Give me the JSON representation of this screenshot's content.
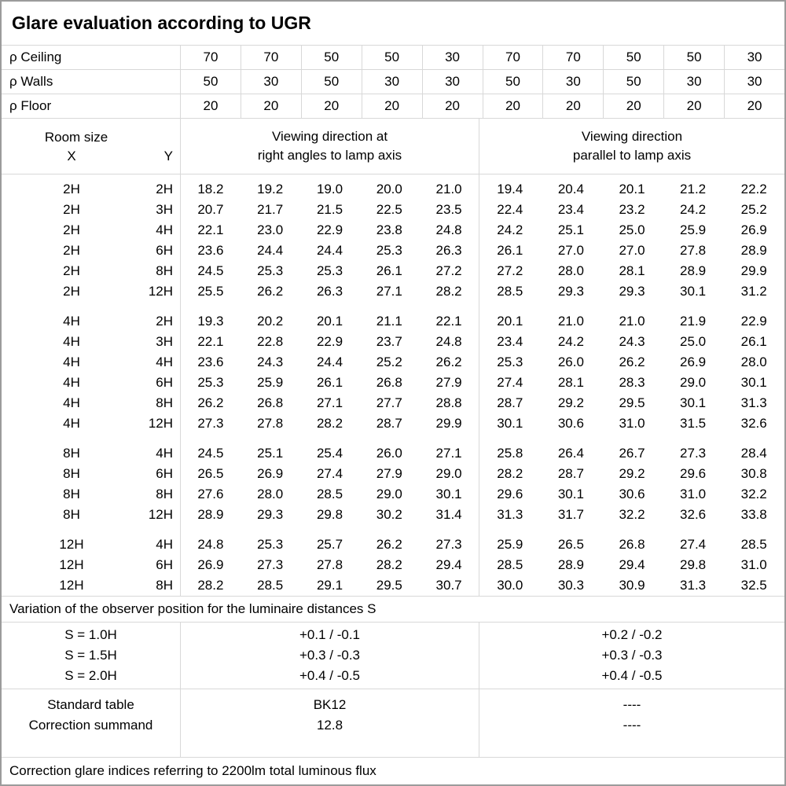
{
  "title": "Glare evaluation according to UGR",
  "reflectance": {
    "rows": [
      {
        "label": "ρ Ceiling",
        "values": [
          "70",
          "70",
          "50",
          "50",
          "30",
          "70",
          "70",
          "50",
          "50",
          "30"
        ]
      },
      {
        "label": "ρ Walls",
        "values": [
          "50",
          "30",
          "50",
          "30",
          "30",
          "50",
          "30",
          "50",
          "30",
          "30"
        ]
      },
      {
        "label": "ρ Floor",
        "values": [
          "20",
          "20",
          "20",
          "20",
          "20",
          "20",
          "20",
          "20",
          "20",
          "20"
        ]
      }
    ]
  },
  "header": {
    "room_size_label": "Room size",
    "x_label": "X",
    "y_label": "Y",
    "right_angles_line1": "Viewing direction at",
    "right_angles_line2": "right angles to lamp axis",
    "parallel_line1": "Viewing direction",
    "parallel_line2": "parallel to lamp axis"
  },
  "ugr_table": {
    "groups": [
      {
        "rows": [
          {
            "x": "2H",
            "y": "2H",
            "right_angles": [
              "18.2",
              "19.2",
              "19.0",
              "20.0",
              "21.0"
            ],
            "parallel": [
              "19.4",
              "20.4",
              "20.1",
              "21.2",
              "22.2"
            ]
          },
          {
            "x": "2H",
            "y": "3H",
            "right_angles": [
              "20.7",
              "21.7",
              "21.5",
              "22.5",
              "23.5"
            ],
            "parallel": [
              "22.4",
              "23.4",
              "23.2",
              "24.2",
              "25.2"
            ]
          },
          {
            "x": "2H",
            "y": "4H",
            "right_angles": [
              "22.1",
              "23.0",
              "22.9",
              "23.8",
              "24.8"
            ],
            "parallel": [
              "24.2",
              "25.1",
              "25.0",
              "25.9",
              "26.9"
            ]
          },
          {
            "x": "2H",
            "y": "6H",
            "right_angles": [
              "23.6",
              "24.4",
              "24.4",
              "25.3",
              "26.3"
            ],
            "parallel": [
              "26.1",
              "27.0",
              "27.0",
              "27.8",
              "28.9"
            ]
          },
          {
            "x": "2H",
            "y": "8H",
            "right_angles": [
              "24.5",
              "25.3",
              "25.3",
              "26.1",
              "27.2"
            ],
            "parallel": [
              "27.2",
              "28.0",
              "28.1",
              "28.9",
              "29.9"
            ]
          },
          {
            "x": "2H",
            "y": "12H",
            "right_angles": [
              "25.5",
              "26.2",
              "26.3",
              "27.1",
              "28.2"
            ],
            "parallel": [
              "28.5",
              "29.3",
              "29.3",
              "30.1",
              "31.2"
            ]
          }
        ]
      },
      {
        "rows": [
          {
            "x": "4H",
            "y": "2H",
            "right_angles": [
              "19.3",
              "20.2",
              "20.1",
              "21.1",
              "22.1"
            ],
            "parallel": [
              "20.1",
              "21.0",
              "21.0",
              "21.9",
              "22.9"
            ]
          },
          {
            "x": "4H",
            "y": "3H",
            "right_angles": [
              "22.1",
              "22.8",
              "22.9",
              "23.7",
              "24.8"
            ],
            "parallel": [
              "23.4",
              "24.2",
              "24.3",
              "25.0",
              "26.1"
            ]
          },
          {
            "x": "4H",
            "y": "4H",
            "right_angles": [
              "23.6",
              "24.3",
              "24.4",
              "25.2",
              "26.2"
            ],
            "parallel": [
              "25.3",
              "26.0",
              "26.2",
              "26.9",
              "28.0"
            ]
          },
          {
            "x": "4H",
            "y": "6H",
            "right_angles": [
              "25.3",
              "25.9",
              "26.1",
              "26.8",
              "27.9"
            ],
            "parallel": [
              "27.4",
              "28.1",
              "28.3",
              "29.0",
              "30.1"
            ]
          },
          {
            "x": "4H",
            "y": "8H",
            "right_angles": [
              "26.2",
              "26.8",
              "27.1",
              "27.7",
              "28.8"
            ],
            "parallel": [
              "28.7",
              "29.2",
              "29.5",
              "30.1",
              "31.3"
            ]
          },
          {
            "x": "4H",
            "y": "12H",
            "right_angles": [
              "27.3",
              "27.8",
              "28.2",
              "28.7",
              "29.9"
            ],
            "parallel": [
              "30.1",
              "30.6",
              "31.0",
              "31.5",
              "32.6"
            ]
          }
        ]
      },
      {
        "rows": [
          {
            "x": "8H",
            "y": "4H",
            "right_angles": [
              "24.5",
              "25.1",
              "25.4",
              "26.0",
              "27.1"
            ],
            "parallel": [
              "25.8",
              "26.4",
              "26.7",
              "27.3",
              "28.4"
            ]
          },
          {
            "x": "8H",
            "y": "6H",
            "right_angles": [
              "26.5",
              "26.9",
              "27.4",
              "27.9",
              "29.0"
            ],
            "parallel": [
              "28.2",
              "28.7",
              "29.2",
              "29.6",
              "30.8"
            ]
          },
          {
            "x": "8H",
            "y": "8H",
            "right_angles": [
              "27.6",
              "28.0",
              "28.5",
              "29.0",
              "30.1"
            ],
            "parallel": [
              "29.6",
              "30.1",
              "30.6",
              "31.0",
              "32.2"
            ]
          },
          {
            "x": "8H",
            "y": "12H",
            "right_angles": [
              "28.9",
              "29.3",
              "29.8",
              "30.2",
              "31.4"
            ],
            "parallel": [
              "31.3",
              "31.7",
              "32.2",
              "32.6",
              "33.8"
            ]
          }
        ]
      },
      {
        "rows": [
          {
            "x": "12H",
            "y": "4H",
            "right_angles": [
              "24.8",
              "25.3",
              "25.7",
              "26.2",
              "27.3"
            ],
            "parallel": [
              "25.9",
              "26.5",
              "26.8",
              "27.4",
              "28.5"
            ]
          },
          {
            "x": "12H",
            "y": "6H",
            "right_angles": [
              "26.9",
              "27.3",
              "27.8",
              "28.2",
              "29.4"
            ],
            "parallel": [
              "28.5",
              "28.9",
              "29.4",
              "29.8",
              "31.0"
            ]
          },
          {
            "x": "12H",
            "y": "8H",
            "right_angles": [
              "28.2",
              "28.5",
              "29.1",
              "29.5",
              "30.7"
            ],
            "parallel": [
              "30.0",
              "30.3",
              "30.9",
              "31.3",
              "32.5"
            ]
          }
        ]
      }
    ]
  },
  "variation": {
    "note": "Variation of the observer position for the luminaire distances S",
    "rows": [
      {
        "label": "S = 1.0H",
        "right_angles": "+0.1 / -0.1",
        "parallel": "+0.2 / -0.2"
      },
      {
        "label": "S = 1.5H",
        "right_angles": "+0.3 / -0.3",
        "parallel": "+0.3 / -0.3"
      },
      {
        "label": "S = 2.0H",
        "right_angles": "+0.4 / -0.5",
        "parallel": "+0.4 / -0.5"
      }
    ]
  },
  "summary": {
    "rows": [
      {
        "label": "Standard table",
        "right_angles": "BK12",
        "parallel": "----"
      },
      {
        "label": "Correction summand",
        "right_angles": "12.8",
        "parallel": "----"
      }
    ]
  },
  "footer_note": "Correction glare indices referring to 2200lm total luminous flux",
  "colors": {
    "grid_line": "#d8d8d8",
    "outer_border": "#9b9b9b",
    "text": "#000000",
    "background": "#ffffff"
  }
}
